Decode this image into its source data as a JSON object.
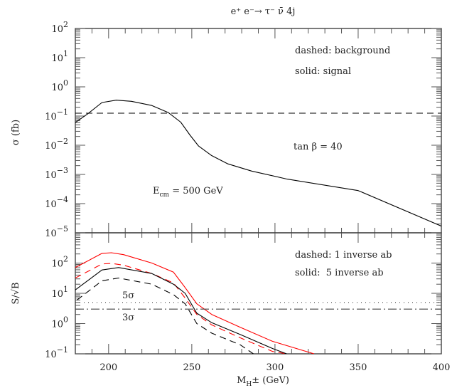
{
  "chart_data": [
    {
      "type": "line",
      "title": "e⁺ e⁻→  τ⁻  ν̄  4j",
      "ylabel": "σ (fb)",
      "xlim": [
        180,
        400
      ],
      "ylim": [
        1e-05,
        100
      ],
      "yscale": "log",
      "yticks": [
        {
          "base": "10",
          "exp": "2",
          "v": 100
        },
        {
          "base": "10",
          "exp": "1",
          "v": 10
        },
        {
          "base": "10",
          "exp": "0",
          "v": 1
        },
        {
          "base": "10",
          "exp": "−1",
          "v": 0.1
        },
        {
          "base": "10",
          "exp": "−2",
          "v": 0.01
        },
        {
          "base": "10",
          "exp": "−3",
          "v": 0.001
        },
        {
          "base": "10",
          "exp": "−4",
          "v": 0.0001
        },
        {
          "base": "10",
          "exp": "−5",
          "v": 1e-05
        }
      ],
      "annotations": [
        "dashed: background",
        "solid: signal",
        "tan β = 40"
      ],
      "ecm": {
        "main": "E",
        "sub": "cm",
        "rest": " = 500 GeV"
      },
      "series": [
        {
          "style": "solid",
          "color": "#000000",
          "x": [
            180,
            187.5,
            196,
            204.6,
            213.7,
            226,
            236,
            243.3,
            249,
            254,
            261.7,
            271.7,
            286,
            307.4,
            350,
            400
          ],
          "y": [
            0.06,
            0.12,
            0.29,
            0.35,
            0.32,
            0.23,
            0.13,
            0.062,
            0.022,
            0.0095,
            0.0045,
            0.0023,
            0.0013,
            0.00069,
            0.00028,
            1.7e-05
          ]
        },
        {
          "style": "dashed",
          "color": "#000000",
          "x": [
            180,
            400
          ],
          "y": [
            0.125,
            0.125
          ]
        }
      ]
    },
    {
      "type": "line",
      "ylabel": "S/√B",
      "xlabel": {
        "main": "M",
        "sub": "H",
        "rest": "± (GeV)"
      },
      "xlim": [
        180,
        400
      ],
      "ylim": [
        0.1,
        1000
      ],
      "yscale": "log",
      "xticks": [
        200,
        250,
        300,
        350,
        400
      ],
      "yticks": [
        {
          "base": "10",
          "exp": "2",
          "v": 100
        },
        {
          "base": "10",
          "exp": "1",
          "v": 10
        },
        {
          "base": "10",
          "exp": "0",
          "v": 1
        },
        {
          "base": "10",
          "exp": "−1",
          "v": 0.1
        }
      ],
      "annotations": [
        "dashed: 1 inverse ab",
        "solid:  5 inverse ab",
        "5σ",
        "3σ"
      ],
      "series": [
        {
          "style": "solid",
          "color": "#ff0000",
          "x": [
            180,
            196,
            201.7,
            209,
            226,
            239,
            246,
            253,
            262,
            279,
            298.5,
            323.5
          ],
          "y": [
            71,
            209,
            219,
            190,
            100,
            50,
            15.5,
            4.5,
            2.0,
            0.76,
            0.26,
            0.1
          ]
        },
        {
          "style": "dashed",
          "color": "#ff0000",
          "x": [
            180,
            196,
            201.7,
            209,
            226,
            239,
            246,
            253,
            262,
            279,
            298.5,
            307
          ],
          "y": [
            32,
            93,
            98,
            85,
            45,
            22,
            7.0,
            2.0,
            0.9,
            0.34,
            0.12,
            0.1
          ]
        },
        {
          "style": "solid",
          "color": "#000000",
          "x": [
            180,
            196,
            206,
            226,
            239,
            246,
            253,
            262,
            279,
            298.5,
            307
          ],
          "y": [
            13,
            59,
            71,
            45,
            20,
            10,
            2.2,
            1.07,
            0.44,
            0.15,
            0.1
          ]
        },
        {
          "style": "dashed",
          "color": "#000000",
          "x": [
            181,
            196,
            206,
            226,
            239,
            246,
            253,
            262,
            279,
            287
          ],
          "y": [
            6,
            26,
            32,
            20,
            9,
            4.5,
            1.0,
            0.48,
            0.2,
            0.1
          ]
        },
        {
          "style": "dotted",
          "color": "#000000",
          "x": [
            180,
            400
          ],
          "y": [
            5,
            5
          ]
        },
        {
          "style": "dashdot",
          "color": "#000000",
          "x": [
            180,
            400
          ],
          "y": [
            3,
            3
          ]
        }
      ]
    }
  ]
}
